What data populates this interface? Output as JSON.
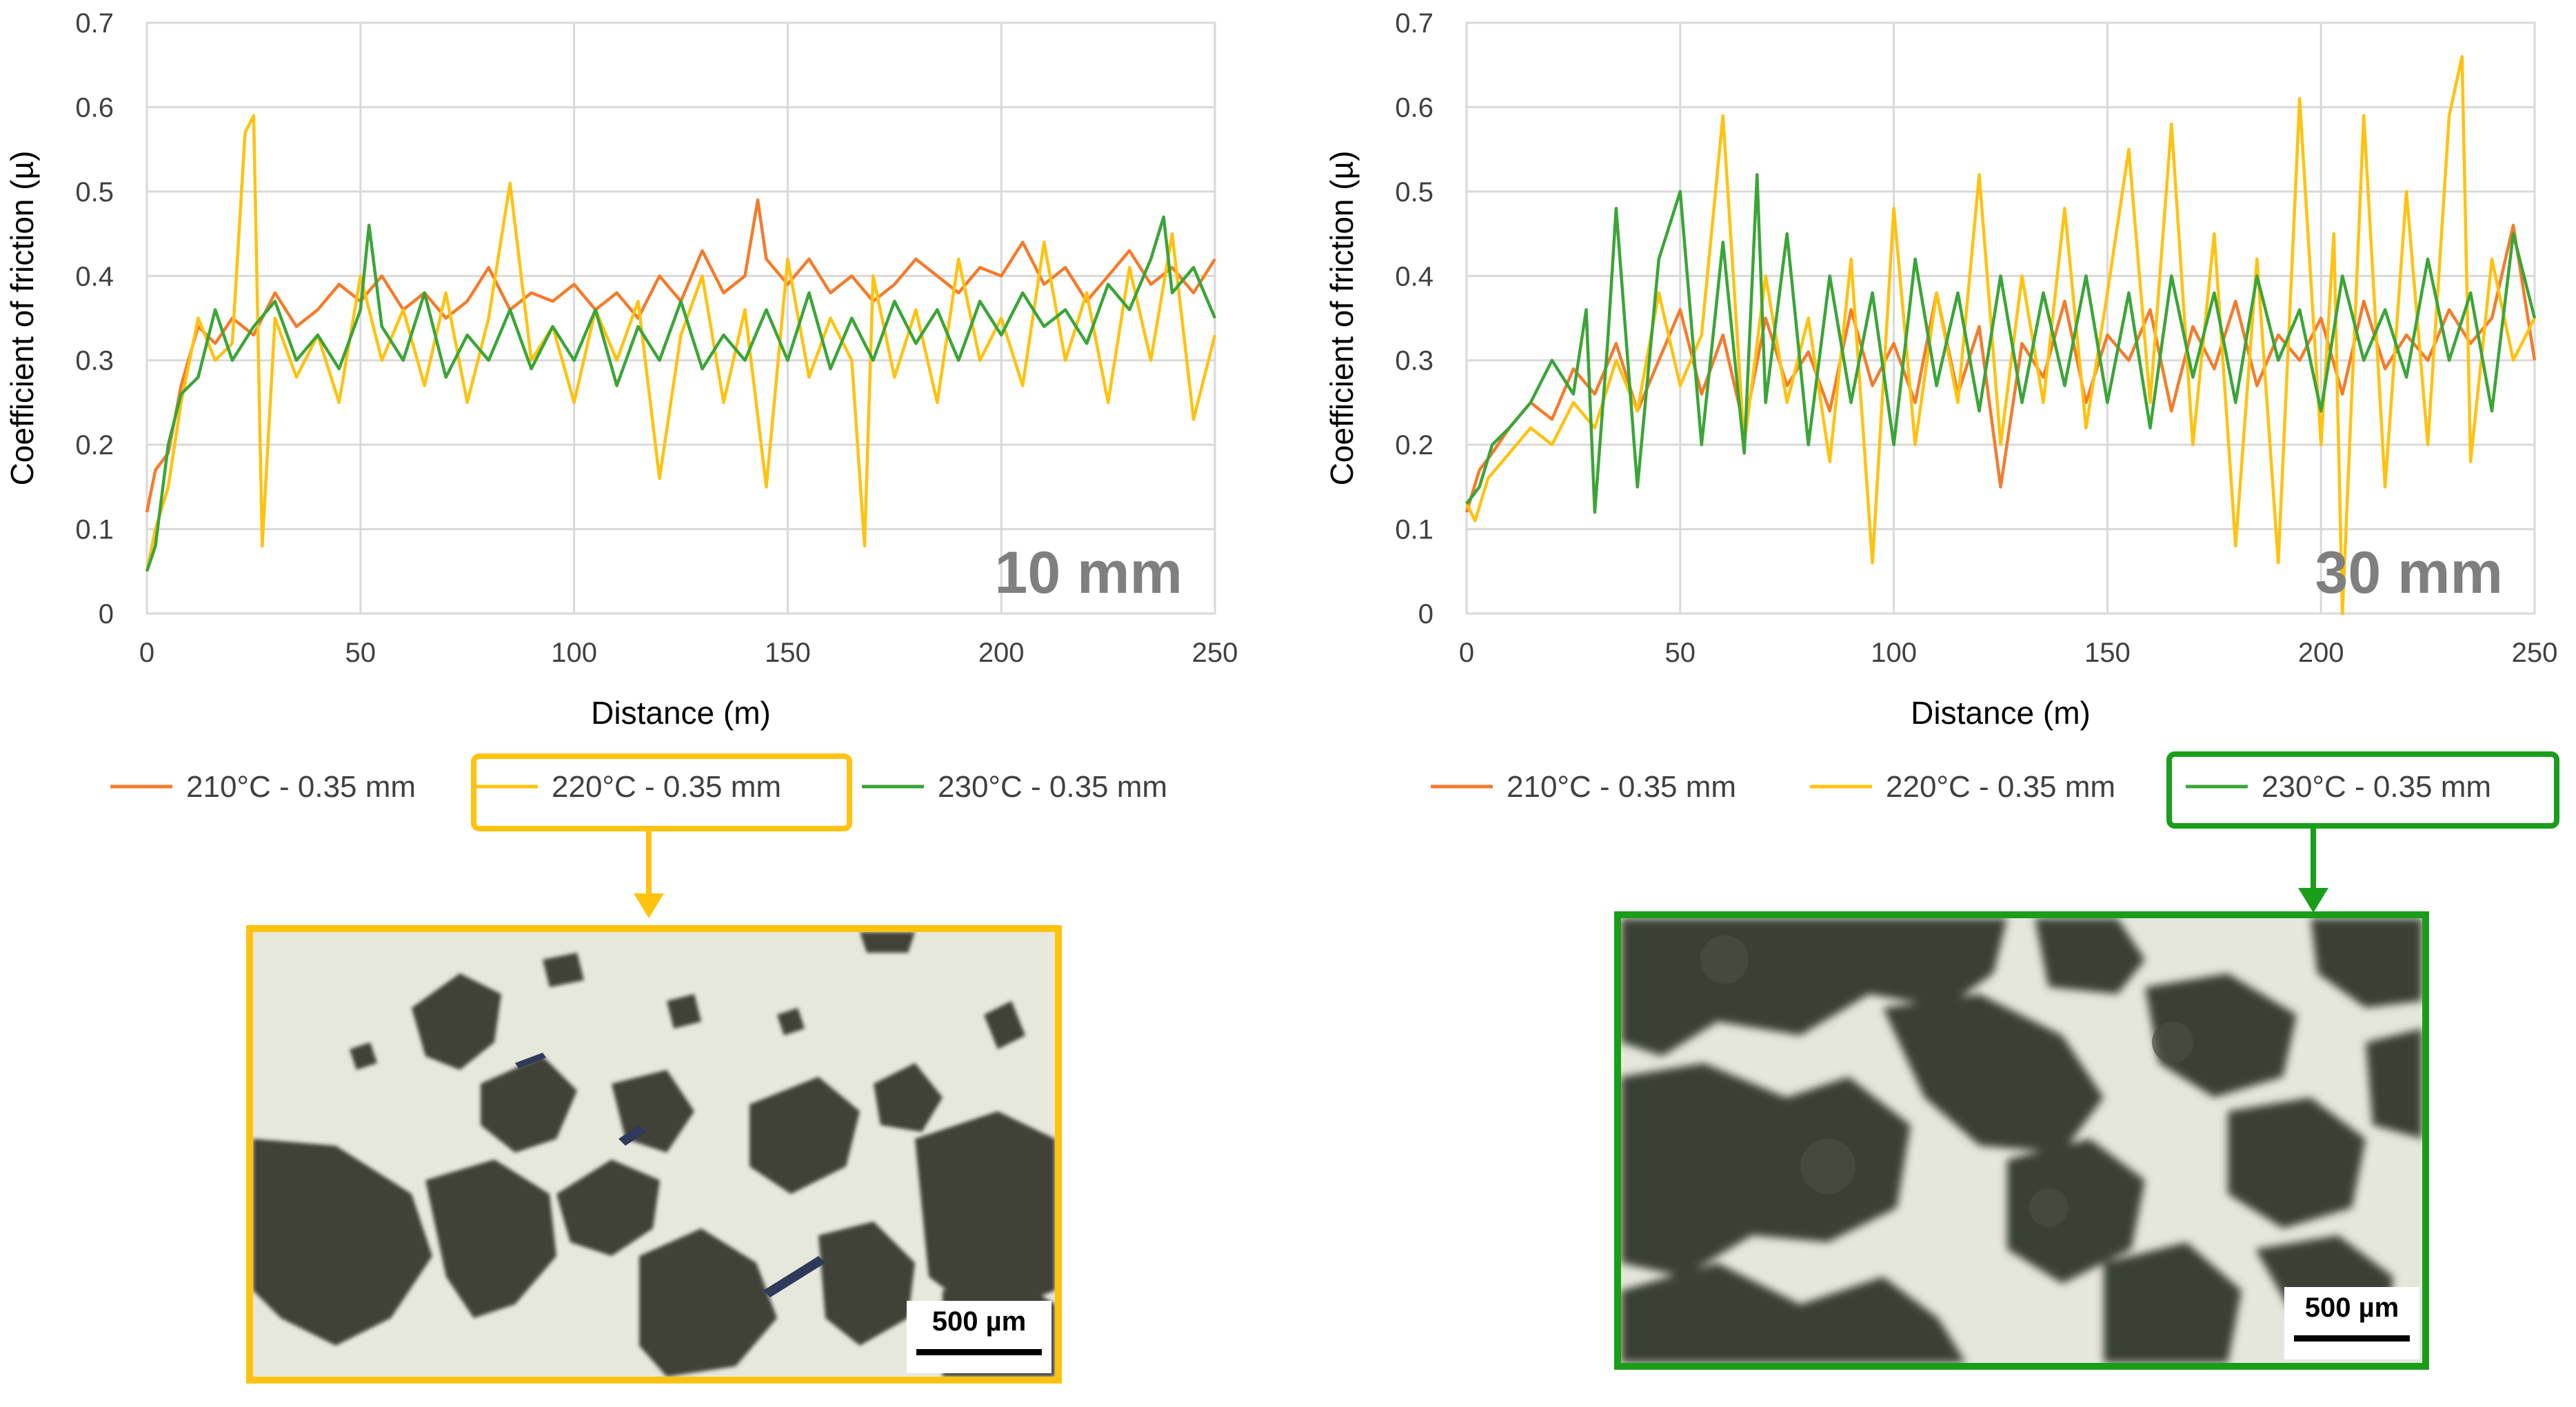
{
  "colors": {
    "s210": "#f47b2b",
    "s220": "#ffc20e",
    "s230": "#3aa537",
    "grid": "#d9d9d9",
    "axis": "#bfbfbf",
    "text": "#000000",
    "watermark": "#7f7f7f",
    "box_left": "#ffc20e",
    "box_right": "#1a9e1a"
  },
  "chart_data": [
    {
      "type": "line",
      "title": "",
      "xlabel": "Distance (m)",
      "ylabel": "Coefficient of friction (µ)",
      "xlim": [
        0,
        250
      ],
      "ylim": [
        0,
        0.7
      ],
      "xticks": [
        "0",
        "50",
        "100",
        "150",
        "200",
        "250"
      ],
      "yticks": [
        "0",
        "0.1",
        "0.2",
        "0.3",
        "0.4",
        "0.5",
        "0.6",
        "0.7"
      ],
      "grid": true,
      "legend_position": "bottom",
      "annotation": "10 mm",
      "series": [
        {
          "name": "210°C - 0.35 mm",
          "color": "#f47b2b",
          "x": [
            0,
            2,
            5,
            8,
            12,
            16,
            20,
            25,
            30,
            35,
            40,
            45,
            50,
            55,
            60,
            65,
            70,
            75,
            80,
            85,
            90,
            95,
            100,
            105,
            110,
            115,
            120,
            125,
            130,
            135,
            140,
            143,
            145,
            150,
            155,
            160,
            165,
            170,
            175,
            180,
            185,
            190,
            195,
            200,
            205,
            210,
            215,
            220,
            225,
            230,
            235,
            240,
            245,
            250
          ],
          "y": [
            0.12,
            0.17,
            0.19,
            0.27,
            0.34,
            0.32,
            0.35,
            0.33,
            0.38,
            0.34,
            0.36,
            0.39,
            0.37,
            0.4,
            0.36,
            0.38,
            0.35,
            0.37,
            0.41,
            0.36,
            0.38,
            0.37,
            0.39,
            0.36,
            0.38,
            0.35,
            0.4,
            0.37,
            0.43,
            0.38,
            0.4,
            0.49,
            0.42,
            0.39,
            0.42,
            0.38,
            0.4,
            0.37,
            0.39,
            0.42,
            0.4,
            0.38,
            0.41,
            0.4,
            0.44,
            0.39,
            0.41,
            0.37,
            0.4,
            0.43,
            0.39,
            0.41,
            0.38,
            0.42
          ]
        },
        {
          "name": "220°C - 0.35 mm",
          "color": "#ffc20e",
          "x": [
            0,
            2,
            5,
            8,
            12,
            16,
            20,
            23,
            25,
            27,
            30,
            35,
            40,
            45,
            50,
            55,
            60,
            65,
            70,
            75,
            80,
            85,
            90,
            95,
            100,
            105,
            110,
            115,
            120,
            125,
            130,
            135,
            140,
            145,
            150,
            155,
            160,
            165,
            168,
            170,
            175,
            180,
            185,
            190,
            195,
            200,
            205,
            210,
            215,
            220,
            225,
            230,
            235,
            240,
            245,
            250
          ],
          "y": [
            0.05,
            0.1,
            0.15,
            0.25,
            0.35,
            0.3,
            0.32,
            0.57,
            0.59,
            0.08,
            0.35,
            0.28,
            0.33,
            0.25,
            0.4,
            0.3,
            0.36,
            0.27,
            0.38,
            0.25,
            0.35,
            0.51,
            0.3,
            0.34,
            0.25,
            0.36,
            0.3,
            0.37,
            0.16,
            0.33,
            0.4,
            0.25,
            0.36,
            0.15,
            0.42,
            0.28,
            0.35,
            0.3,
            0.08,
            0.4,
            0.28,
            0.36,
            0.25,
            0.42,
            0.3,
            0.35,
            0.27,
            0.44,
            0.3,
            0.38,
            0.25,
            0.41,
            0.3,
            0.45,
            0.23,
            0.33
          ]
        },
        {
          "name": "230°C - 0.35 mm",
          "color": "#3aa537",
          "x": [
            0,
            2,
            5,
            8,
            12,
            16,
            20,
            25,
            30,
            35,
            40,
            45,
            50,
            52,
            55,
            60,
            65,
            70,
            75,
            80,
            85,
            90,
            95,
            100,
            105,
            110,
            115,
            120,
            125,
            130,
            135,
            140,
            145,
            150,
            155,
            160,
            165,
            170,
            175,
            180,
            185,
            190,
            195,
            200,
            205,
            210,
            215,
            220,
            225,
            230,
            235,
            238,
            240,
            245,
            250
          ],
          "y": [
            0.05,
            0.08,
            0.2,
            0.26,
            0.28,
            0.36,
            0.3,
            0.34,
            0.37,
            0.3,
            0.33,
            0.29,
            0.36,
            0.46,
            0.34,
            0.3,
            0.38,
            0.28,
            0.33,
            0.3,
            0.36,
            0.29,
            0.34,
            0.3,
            0.36,
            0.27,
            0.34,
            0.3,
            0.37,
            0.29,
            0.33,
            0.3,
            0.36,
            0.3,
            0.38,
            0.29,
            0.35,
            0.3,
            0.37,
            0.32,
            0.36,
            0.3,
            0.37,
            0.33,
            0.38,
            0.34,
            0.36,
            0.32,
            0.39,
            0.36,
            0.42,
            0.47,
            0.38,
            0.41,
            0.35
          ]
        }
      ]
    },
    {
      "type": "line",
      "title": "",
      "xlabel": "Distance (m)",
      "ylabel": "Coefficient of friction (µ)",
      "xlim": [
        0,
        250
      ],
      "ylim": [
        0,
        0.7
      ],
      "xticks": [
        "0",
        "50",
        "100",
        "150",
        "200",
        "250"
      ],
      "yticks": [
        "0",
        "0.1",
        "0.2",
        "0.3",
        "0.4",
        "0.5",
        "0.6",
        "0.7"
      ],
      "grid": true,
      "legend_position": "bottom",
      "annotation": "30 mm",
      "series": [
        {
          "name": "210°C - 0.35 mm",
          "color": "#f47b2b",
          "x": [
            0,
            3,
            6,
            10,
            15,
            20,
            25,
            30,
            35,
            40,
            45,
            50,
            55,
            60,
            65,
            70,
            75,
            80,
            85,
            90,
            95,
            100,
            105,
            110,
            115,
            120,
            125,
            130,
            135,
            140,
            145,
            150,
            155,
            160,
            165,
            170,
            175,
            180,
            185,
            190,
            195,
            200,
            205,
            210,
            215,
            220,
            225,
            230,
            235,
            240,
            245,
            250
          ],
          "y": [
            0.12,
            0.17,
            0.19,
            0.22,
            0.25,
            0.23,
            0.29,
            0.26,
            0.32,
            0.24,
            0.3,
            0.36,
            0.26,
            0.33,
            0.22,
            0.35,
            0.27,
            0.31,
            0.24,
            0.36,
            0.27,
            0.32,
            0.25,
            0.38,
            0.26,
            0.34,
            0.15,
            0.32,
            0.28,
            0.37,
            0.25,
            0.33,
            0.3,
            0.36,
            0.24,
            0.34,
            0.29,
            0.37,
            0.27,
            0.33,
            0.3,
            0.35,
            0.26,
            0.37,
            0.29,
            0.33,
            0.3,
            0.36,
            0.32,
            0.35,
            0.46,
            0.3
          ]
        },
        {
          "name": "220°C - 0.35 mm",
          "color": "#ffc20e",
          "x": [
            0,
            2,
            5,
            10,
            15,
            20,
            25,
            30,
            35,
            40,
            45,
            50,
            55,
            60,
            65,
            70,
            75,
            80,
            85,
            90,
            95,
            100,
            105,
            110,
            115,
            120,
            125,
            130,
            135,
            140,
            145,
            150,
            155,
            160,
            165,
            170,
            175,
            180,
            185,
            190,
            195,
            200,
            203,
            205,
            210,
            215,
            220,
            225,
            230,
            233,
            235,
            240,
            245,
            250
          ],
          "y": [
            0.13,
            0.11,
            0.16,
            0.19,
            0.22,
            0.2,
            0.25,
            0.22,
            0.3,
            0.24,
            0.38,
            0.27,
            0.33,
            0.59,
            0.2,
            0.4,
            0.25,
            0.35,
            0.18,
            0.42,
            0.06,
            0.48,
            0.2,
            0.38,
            0.25,
            0.52,
            0.2,
            0.4,
            0.25,
            0.48,
            0.22,
            0.38,
            0.55,
            0.25,
            0.58,
            0.2,
            0.45,
            0.08,
            0.42,
            0.06,
            0.61,
            0.2,
            0.45,
            0.0,
            0.59,
            0.15,
            0.5,
            0.2,
            0.59,
            0.66,
            0.18,
            0.42,
            0.3,
            0.35
          ]
        },
        {
          "name": "230°C - 0.35 mm",
          "color": "#3aa537",
          "x": [
            0,
            3,
            6,
            10,
            15,
            20,
            25,
            28,
            30,
            33,
            35,
            40,
            45,
            50,
            55,
            60,
            65,
            68,
            70,
            75,
            80,
            85,
            90,
            95,
            100,
            105,
            110,
            115,
            120,
            125,
            130,
            135,
            140,
            145,
            150,
            155,
            160,
            165,
            170,
            175,
            180,
            185,
            190,
            195,
            200,
            205,
            210,
            215,
            220,
            225,
            230,
            235,
            240,
            245,
            250
          ],
          "y": [
            0.13,
            0.15,
            0.2,
            0.22,
            0.25,
            0.3,
            0.26,
            0.36,
            0.12,
            0.32,
            0.48,
            0.15,
            0.42,
            0.5,
            0.2,
            0.44,
            0.19,
            0.52,
            0.25,
            0.45,
            0.2,
            0.4,
            0.25,
            0.38,
            0.2,
            0.42,
            0.27,
            0.38,
            0.24,
            0.4,
            0.25,
            0.38,
            0.27,
            0.4,
            0.25,
            0.38,
            0.22,
            0.4,
            0.28,
            0.38,
            0.25,
            0.4,
            0.3,
            0.36,
            0.24,
            0.4,
            0.3,
            0.36,
            0.28,
            0.42,
            0.3,
            0.38,
            0.24,
            0.45,
            0.35
          ]
        }
      ]
    }
  ],
  "micrographs": [
    {
      "scale_label": "500 µm"
    },
    {
      "scale_label": "500 µm"
    }
  ]
}
